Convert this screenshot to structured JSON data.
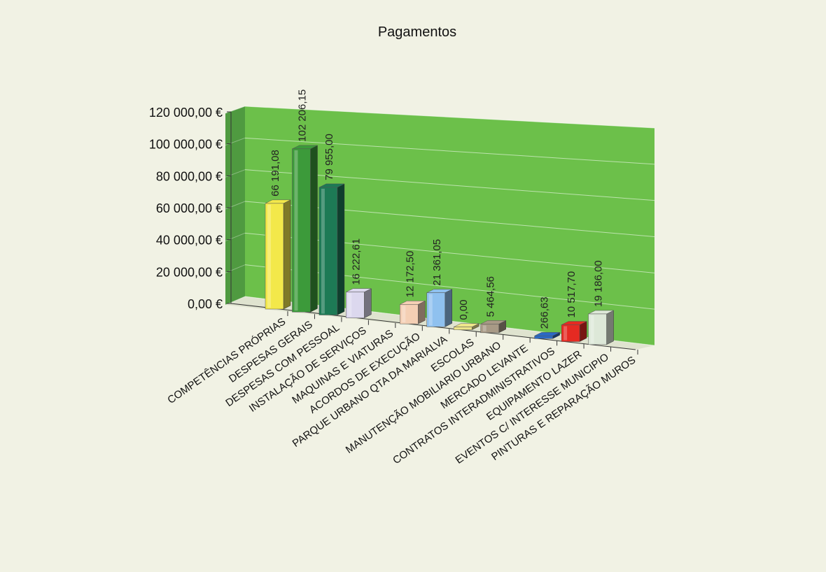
{
  "chart_data": {
    "type": "bar",
    "title": "Pagamentos",
    "ylim": [
      0,
      120000
    ],
    "yticks": [
      {
        "value": 0,
        "label": "0,00 €"
      },
      {
        "value": 20000,
        "label": "20 000,00 €"
      },
      {
        "value": 40000,
        "label": "40 000,00 €"
      },
      {
        "value": 60000,
        "label": "60 000,00 €"
      },
      {
        "value": 80000,
        "label": "80 000,00 €"
      },
      {
        "value": 100000,
        "label": "100 000,00 €"
      },
      {
        "value": 120000,
        "label": "120 000,00 €"
      }
    ],
    "categories": [
      "COMPETÊNCIAS PRÓPRIAS",
      "DESPESAS GERAIS",
      "DESPESAS COM PESSOAL",
      "INSTALAÇÃO DE SERVIÇOS",
      "MAQUINAS E VIATURAS",
      "ACORDOS DE EXECUÇÃO",
      "PARQUE URBANO QTA DA MARIALVA",
      "ESCOLAS",
      "MANUTENÇÃO MOBILIARIO URBANO",
      "MERCADO LEVANTE",
      "CONTRATOS INTERADMINISTRATIVOS",
      "EQUIPAMENTO LAZER",
      "EVENTOS C/ INTERESSE MUNICIPIO",
      "PINTURAS E REPARAÇÃO MUROS"
    ],
    "values": [
      66191.08,
      102206.15,
      79955.0,
      16222.61,
      null,
      12172.5,
      21361.05,
      0.0,
      5464.56,
      null,
      266.63,
      10517.7,
      19186.0,
      null
    ],
    "value_labels": [
      "66 191,08",
      "102 206,15",
      "79 955,00",
      "16 222,61",
      "",
      "12 172,50",
      "21 361,05",
      "0,00",
      "5 464,56",
      "",
      "266,63",
      "10 517,70",
      "19 186,00",
      ""
    ],
    "colors": {
      "wall": "#6cc04a",
      "side_wall": "#4f9a40",
      "floor": "#dfe3cf",
      "bars": [
        "#f3e84a",
        "#3c9a3a",
        "#1d7a55",
        "#dcd8ee",
        "#c0c0c0",
        "#f4cfb4",
        "#8fc1ef",
        "#ede58a",
        "#a89a86",
        "#c0c0c0",
        "#2b69c4",
        "#e52a22",
        "#dde8d8",
        "#c0c0c0"
      ]
    },
    "grid": true,
    "legend": "none"
  }
}
